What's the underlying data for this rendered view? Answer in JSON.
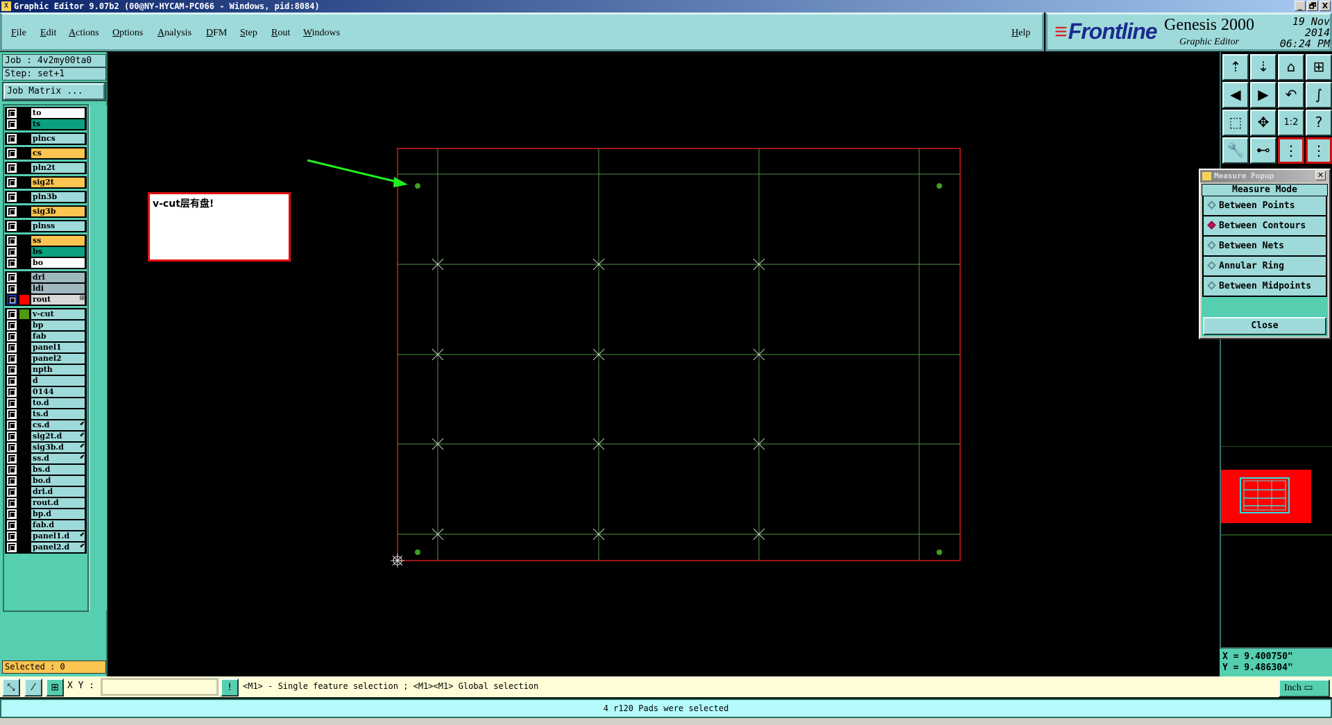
{
  "window": {
    "title": "Graphic Editor 9.07b2 (00@NY-HYCAM-PC066 - Windows, pid:8084)",
    "minimize": "_",
    "restore": "🗗",
    "close": "X"
  },
  "menu": {
    "items": [
      "File",
      "Edit",
      "Actions",
      "Options",
      "Analysis",
      "DFM",
      "Step",
      "Rout",
      "Windows"
    ],
    "help": "Help"
  },
  "brand": {
    "logo": "Frontline",
    "product": "Genesis 2000",
    "subtitle": "Graphic Editor",
    "date": "19 Nov 2014",
    "time": "06:24 PM"
  },
  "job": {
    "job": "Job : 4v2my00ta0",
    "step": "Step: set+1",
    "matrix_button": "Job Matrix ..."
  },
  "layers": [
    [
      {
        "n": "to",
        "c": "#ffffff"
      },
      {
        "n": "ts",
        "c": "#0b9f7f"
      }
    ],
    [
      {
        "n": "plncs"
      }
    ],
    [
      {
        "n": "cs",
        "c": "#fcc450"
      }
    ],
    [
      {
        "n": "pln2t"
      }
    ],
    [
      {
        "n": "sig2t",
        "c": "#fcc450"
      }
    ],
    [
      {
        "n": "pln3b"
      }
    ],
    [
      {
        "n": "sig3b",
        "c": "#fcc450"
      }
    ],
    [
      {
        "n": "plnss"
      }
    ],
    [
      {
        "n": "ss",
        "c": "#fcc450"
      },
      {
        "n": "bs",
        "c": "#0b9f7f"
      },
      {
        "n": "bo",
        "c": "#ffffff"
      }
    ],
    [
      {
        "n": "drl",
        "c": "#9fb8c0"
      },
      {
        "n": "ldi",
        "c": "#9fb8c0"
      },
      {
        "n": "rout",
        "c": "#d8d8d8",
        "swatch": "#ff0000",
        "active": true,
        "mark": "⊞"
      }
    ],
    [
      {
        "n": "v-cut",
        "swatch": "#4b9a10"
      },
      {
        "n": "bp"
      },
      {
        "n": "fab"
      },
      {
        "n": "panel1"
      },
      {
        "n": "panel2"
      },
      {
        "n": "npth"
      },
      {
        "n": "d"
      },
      {
        "n": "0144"
      },
      {
        "n": "to.d"
      },
      {
        "n": "ts.d"
      },
      {
        "n": "cs.d",
        "mark": "⬋"
      },
      {
        "n": "sig2t.d",
        "mark": "⬋"
      },
      {
        "n": "sig3b.d",
        "mark": "⬋"
      },
      {
        "n": "ss.d",
        "mark": "⬋"
      },
      {
        "n": "bs.d"
      },
      {
        "n": "bo.d"
      },
      {
        "n": "drl.d"
      },
      {
        "n": "rout.d"
      },
      {
        "n": "bp.d"
      },
      {
        "n": "fab.d"
      },
      {
        "n": "panel1.d",
        "mark": "⬋"
      },
      {
        "n": "panel2.d",
        "mark": "⬋"
      }
    ]
  ],
  "selected": "Selected : 0",
  "annotation": {
    "text": "v-cut层有盘!"
  },
  "tools": [
    {
      "name": "zoom-in-icon",
      "g": "⇡"
    },
    {
      "name": "zoom-out-icon",
      "g": "⇣"
    },
    {
      "name": "home-icon",
      "g": "⌂"
    },
    {
      "name": "window-xy-icon",
      "g": "⊞"
    },
    {
      "name": "pan-left-icon",
      "g": "◀"
    },
    {
      "name": "pan-right-icon",
      "g": "▶"
    },
    {
      "name": "undo-view-icon",
      "g": "↶"
    },
    {
      "name": "snap-icon",
      "g": "∫"
    },
    {
      "name": "fit-icon",
      "g": "⬚"
    },
    {
      "name": "center-icon",
      "g": "✥"
    },
    {
      "name": "scale-icon",
      "g": "1:2"
    },
    {
      "name": "help-icon",
      "g": "?"
    },
    {
      "name": "tools-icon",
      "g": "🔧"
    },
    {
      "name": "measure-icon",
      "g": "⊷"
    },
    {
      "name": "net-icon",
      "g": "⋮",
      "red": true
    },
    {
      "name": "net2-icon",
      "g": "⋮",
      "red": true
    }
  ],
  "measure_popup": {
    "title": "Measure Popup",
    "header": "Measure Mode",
    "options": [
      {
        "label": "Between Points",
        "selected": false
      },
      {
        "label": "Between Contours",
        "selected": true
      },
      {
        "label": "Between Nets",
        "selected": false
      },
      {
        "label": "Annular Ring",
        "selected": false
      },
      {
        "label": "Between Midpoints",
        "selected": false
      }
    ],
    "close": "Close"
  },
  "coords": {
    "x": "X = 9.400750\"",
    "y": "Y = 9.486304\""
  },
  "bottom": {
    "xy_label": "X Y :",
    "xy_value": "",
    "hint": "<M1> - Single feature selection ; <M1><M1> Global selection",
    "units": "Inch"
  },
  "message": "4 r120 Pads were selected",
  "colors": {
    "profile": "#d01c1c",
    "vcut_lines": "#4a9a3a",
    "pads": "#3fa020",
    "arrow": "#20f020",
    "panel_bg": "#9fdada"
  }
}
